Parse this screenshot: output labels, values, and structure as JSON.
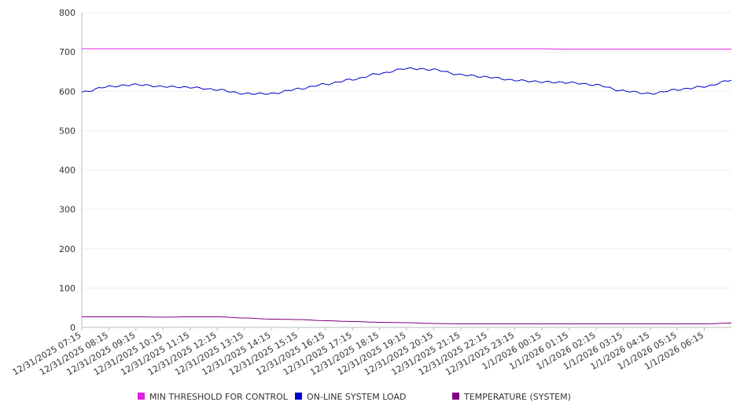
{
  "chart_data": {
    "type": "line",
    "title": "",
    "xlabel": "",
    "ylabel": "",
    "ylim": [
      0,
      800
    ],
    "yticks": [
      0,
      100,
      200,
      300,
      400,
      500,
      600,
      700,
      800
    ],
    "grid": true,
    "legend_position": "bottom",
    "x_tick_labels": [
      "12/31/2025 07:15",
      "12/31/2025 08:15",
      "12/31/2025 09:15",
      "12/31/2025 10:15",
      "12/31/2025 11:15",
      "12/31/2025 12:15",
      "12/31/2025 13:15",
      "12/31/2025 14:15",
      "12/31/2025 15:15",
      "12/31/2025 16:15",
      "12/31/2025 17:15",
      "12/31/2025 18:15",
      "12/31/2025 19:15",
      "12/31/2025 20:15",
      "12/31/2025 21:15",
      "12/31/2025 22:15",
      "12/31/2025 23:15",
      "1/1/2026 00:15",
      "1/1/2026 01:15",
      "1/1/2026 02:15",
      "1/1/2026 03:15",
      "1/1/2026 04:15",
      "1/1/2026 05:15",
      "1/1/2026 06:15"
    ],
    "x_end": "1/1/2026 07:15",
    "series": [
      {
        "name": "MIN THRESHOLD FOR CONTROL",
        "color": "#e020e0",
        "values": [
          708,
          708,
          708,
          708,
          708,
          708,
          708,
          708,
          708,
          708,
          708,
          708,
          708,
          708,
          708,
          708,
          708,
          708,
          707,
          707,
          707,
          707,
          707,
          707,
          707
        ]
      },
      {
        "name": "ON-LINE SYSTEM LOAD",
        "color": "#0000cc",
        "values": [
          598,
          612,
          617,
          612,
          610,
          604,
          594,
          594,
          606,
          618,
          630,
          645,
          658,
          655,
          642,
          636,
          628,
          624,
          622,
          616,
          601,
          594,
          604,
          612,
          628
        ]
      },
      {
        "name": "TEMPERATURE (SYSTEM)",
        "color": "#800080",
        "values": [
          27,
          27,
          27,
          26,
          27,
          27,
          24,
          21,
          20,
          17,
          15,
          13,
          12,
          10,
          9,
          9,
          9,
          9,
          9,
          9,
          9,
          9,
          9,
          9,
          11
        ]
      }
    ]
  }
}
